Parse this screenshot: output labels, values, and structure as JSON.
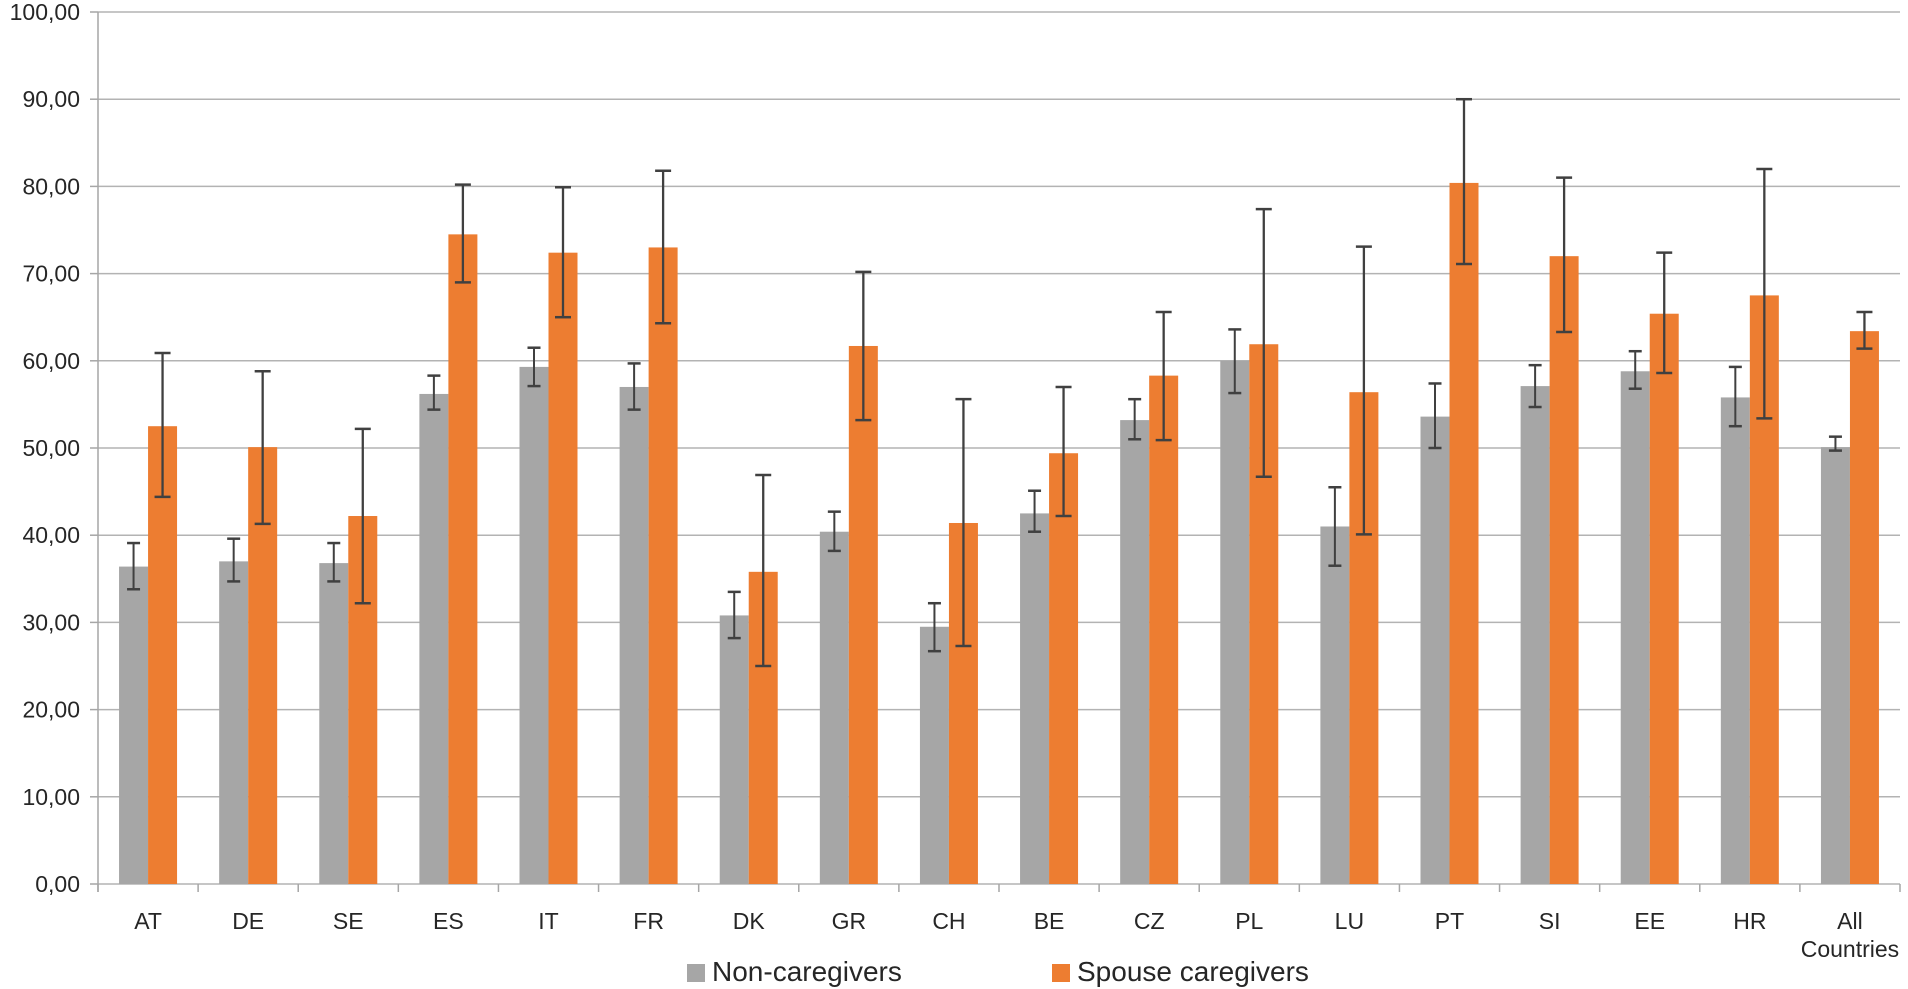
{
  "chart_data": {
    "type": "bar",
    "title": "",
    "xlabel": "",
    "ylabel": "",
    "ylim": [
      0,
      100
    ],
    "grid": true,
    "legend_position": "bottom",
    "y_axis": {
      "min": 0,
      "max": 100,
      "step": 10,
      "tick_labels": [
        "0,00",
        "10,00",
        "20,00",
        "30,00",
        "40,00",
        "50,00",
        "60,00",
        "70,00",
        "80,00",
        "90,00",
        "100,00"
      ]
    },
    "categories": [
      "AT",
      "DE",
      "SE",
      "ES",
      "IT",
      "FR",
      "DK",
      "GR",
      "CH",
      "BE",
      "CZ",
      "PL",
      "LU",
      "PT",
      "SI",
      "EE",
      "HR",
      "All Countries"
    ],
    "series": [
      {
        "name": "Non-caregivers",
        "color": "#a6a6a6",
        "values": [
          36.4,
          37.0,
          36.8,
          56.2,
          59.3,
          57.0,
          30.8,
          40.4,
          29.5,
          42.5,
          53.2,
          60.0,
          41.0,
          53.6,
          57.1,
          58.8,
          55.8,
          50.1
        ],
        "ci_low": [
          33.8,
          34.7,
          34.7,
          54.4,
          57.1,
          54.4,
          28.2,
          38.2,
          26.7,
          40.4,
          51.0,
          56.3,
          36.5,
          50.0,
          54.7,
          56.8,
          52.5,
          49.7
        ],
        "ci_high": [
          39.1,
          39.6,
          39.1,
          58.3,
          61.5,
          59.7,
          33.5,
          42.7,
          32.2,
          45.1,
          55.6,
          63.6,
          45.5,
          57.4,
          59.5,
          61.1,
          59.3,
          51.3
        ]
      },
      {
        "name": "Spouse caregivers",
        "color": "#ed7d31",
        "values": [
          52.5,
          50.1,
          42.2,
          74.5,
          72.4,
          73.0,
          35.8,
          61.7,
          41.4,
          49.4,
          58.3,
          61.9,
          56.4,
          80.4,
          72.0,
          65.4,
          67.5,
          63.4
        ],
        "ci_low": [
          44.4,
          41.3,
          32.2,
          69.0,
          65.0,
          64.3,
          25.0,
          53.2,
          27.3,
          42.2,
          50.9,
          46.7,
          40.1,
          71.1,
          63.3,
          58.6,
          53.4,
          61.4
        ],
        "ci_high": [
          60.9,
          58.8,
          52.2,
          80.2,
          79.9,
          81.8,
          46.9,
          70.2,
          55.6,
          57.0,
          65.6,
          77.4,
          73.1,
          90.0,
          81.0,
          72.4,
          82.0,
          65.6
        ]
      }
    ],
    "error_bar_color": "#404040",
    "gridline_color": "#b3b3b3",
    "axis_color": "#a6a6a6",
    "legend": {
      "items": [
        {
          "label": "Non-caregivers",
          "color": "#a6a6a6"
        },
        {
          "label": "Spouse caregivers",
          "color": "#ed7d31"
        }
      ]
    }
  }
}
